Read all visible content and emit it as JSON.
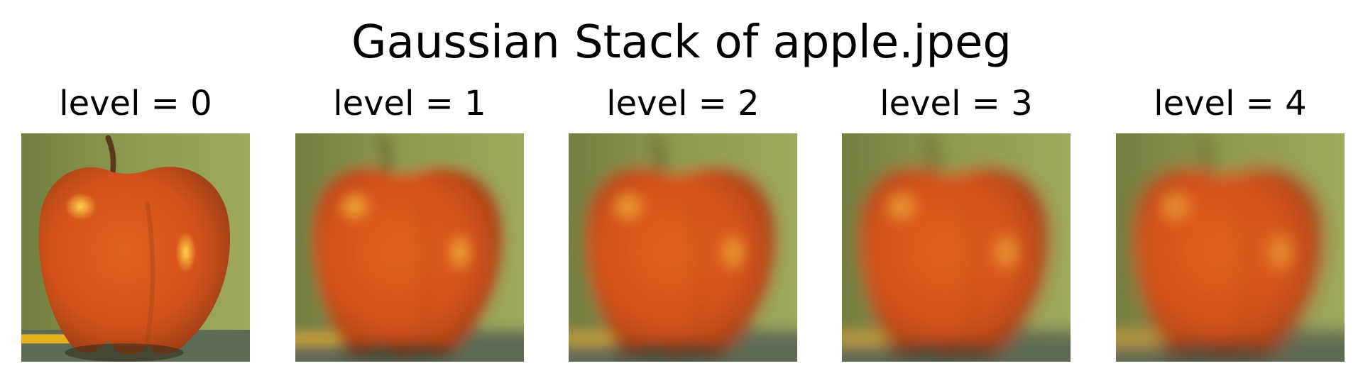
{
  "figure": {
    "title": "Gaussian Stack of apple.jpeg"
  },
  "panels": [
    {
      "title": "level = 0",
      "level": 0
    },
    {
      "title": "level = 1",
      "level": 1
    },
    {
      "title": "level = 2",
      "level": 2
    },
    {
      "title": "level = 3",
      "level": 3
    },
    {
      "title": "level = 4",
      "level": 4
    }
  ],
  "colors": {
    "background_green": "#8e9a4e",
    "apple_red": "#d4531c",
    "apple_highlight": "#ffd34a",
    "table_gray": "#5e6b55",
    "pencil_yellow": "#e2b11c"
  }
}
